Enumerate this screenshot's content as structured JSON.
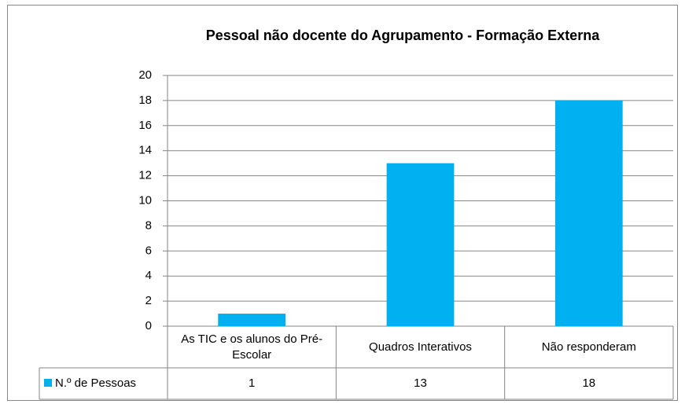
{
  "chart_data": {
    "type": "bar",
    "title": "Pessoal não docente do Agrupamento - Formação Externa",
    "categories": [
      "As TIC e os alunos do Pré-Escolar",
      "Quadros Interativos",
      "Não responderam"
    ],
    "series": [
      {
        "name": "N.º de Pessoas",
        "color": "#00b0f0",
        "values": [
          1,
          13,
          18
        ]
      }
    ],
    "ylim": [
      0,
      20
    ],
    "yticks": [
      0,
      2,
      4,
      6,
      8,
      10,
      12,
      14,
      16,
      18,
      20
    ],
    "grid": true
  }
}
